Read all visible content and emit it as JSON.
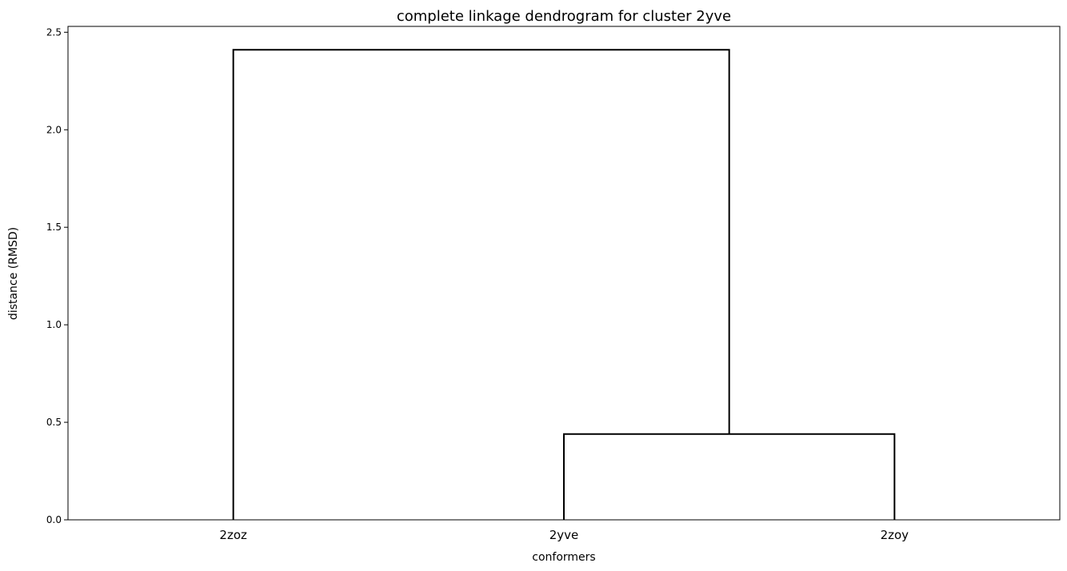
{
  "chart_data": {
    "type": "dendrogram",
    "title": "complete linkage dendrogram for cluster 2yve",
    "xlabel": "conformers",
    "ylabel": "distance (RMSD)",
    "ylim": [
      0,
      2.53
    ],
    "yticks": [
      "0.0",
      "0.5",
      "1.0",
      "1.5",
      "2.0",
      "2.5"
    ],
    "ytick_values": [
      0,
      0.5,
      1.0,
      1.5,
      2.0,
      2.5
    ],
    "leaves": [
      "2zoz",
      "2yve",
      "2zoy"
    ],
    "merges": [
      {
        "left": "2yve",
        "right": "2zoy",
        "height": 0.44
      },
      {
        "left": "2zoz",
        "right": "2yve + 2zoy",
        "height": 2.41
      }
    ],
    "line_color": "#000000",
    "grid": false,
    "legend": false
  }
}
